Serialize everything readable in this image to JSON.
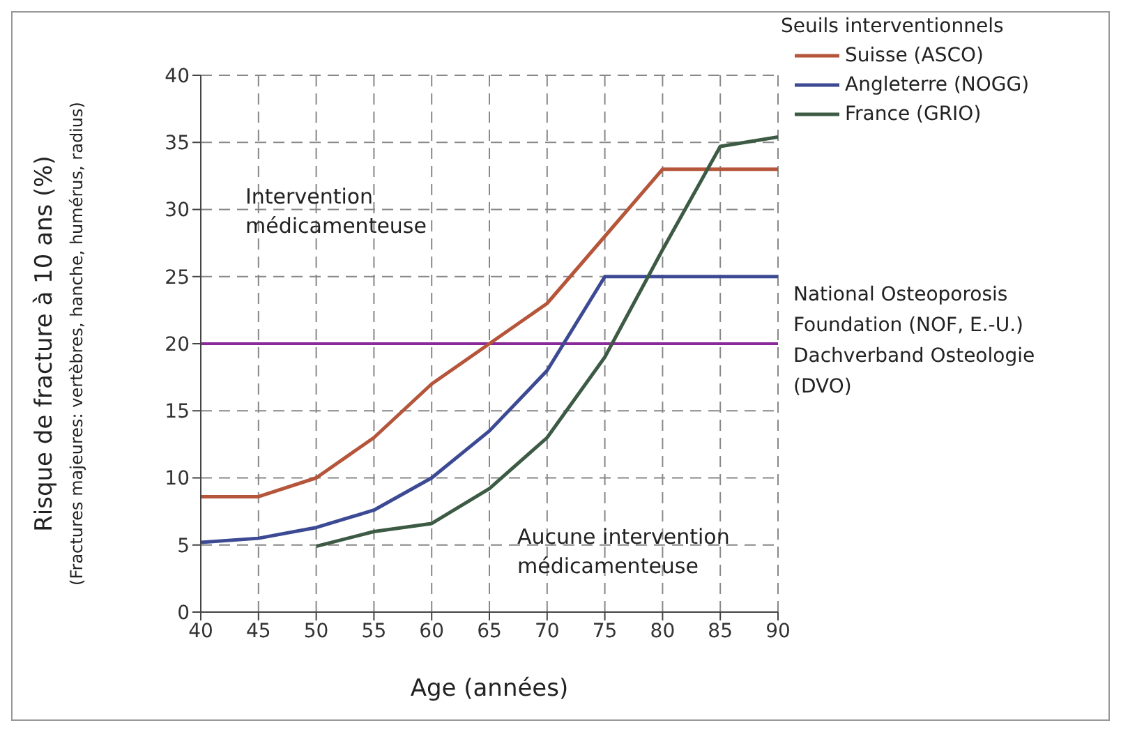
{
  "chart_data": {
    "type": "line",
    "xlabel": "Age (années)",
    "ylabel": "Risque de fracture à 10 ans (%)\n(Fractures majeures: vertèbres, hanche, humérus, radius)",
    "legend_title": "Seuils interventionnels",
    "x": [
      40,
      45,
      50,
      55,
      60,
      65,
      70,
      75,
      80,
      85,
      90
    ],
    "series": [
      {
        "name": "Suisse (ASCO)",
        "color": "#b5553a",
        "values": [
          8.6,
          8.6,
          10,
          13,
          17,
          20,
          23,
          28,
          33,
          33,
          33
        ]
      },
      {
        "name": "Angleterre (NOGG)",
        "color": "#3c4a94",
        "values": [
          5.2,
          5.5,
          6.3,
          7.6,
          10,
          13.5,
          18,
          25,
          25,
          25,
          25
        ]
      },
      {
        "name": "France (GRIO)",
        "color": "#3c5a44",
        "values": [
          null,
          null,
          4.9,
          6,
          6.6,
          9.2,
          13,
          19,
          27,
          34.7,
          35.4
        ]
      }
    ],
    "ref_lines": [
      {
        "axis": "y",
        "value": 20,
        "label": "National Osteoporosis\nFoundation (NOF, E.-U.)\nDachverband Osteologie\n(DVO)",
        "color": "#8a2a9a"
      }
    ],
    "annotations": [
      "Intervention\nmédicamenteuse",
      "Aucune intervention\nmédicamenteuse"
    ],
    "xlim": [
      40,
      90
    ],
    "xticks": [
      40,
      45,
      50,
      55,
      60,
      65,
      70,
      75,
      80,
      85,
      90
    ],
    "ylim": [
      0,
      40
    ],
    "yticks": [
      0,
      5,
      10,
      15,
      20,
      25,
      30,
      35,
      40
    ],
    "grid": true,
    "legend": "top right",
    "marker": "none",
    "line_style": "solid"
  }
}
